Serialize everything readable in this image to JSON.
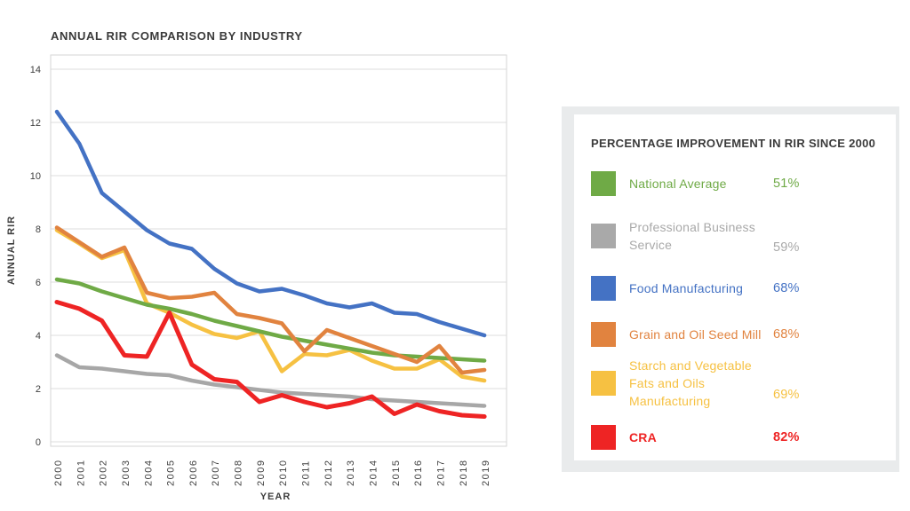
{
  "chart_data": {
    "type": "line",
    "title": "ANNUAL RIR COMPARISON BY INDUSTRY",
    "xlabel": "YEAR",
    "ylabel": "ANNUAL RIR",
    "x": [
      "2000",
      "2001",
      "2002",
      "2003",
      "2004",
      "2005",
      "2006",
      "2007",
      "2008",
      "2009",
      "2010",
      "2011",
      "2012",
      "2013",
      "2014",
      "2015",
      "2016",
      "2017",
      "2018",
      "2019"
    ],
    "ylim": [
      0,
      14
    ],
    "ytick_step": 2,
    "grid": true,
    "legend_position": "right-panel",
    "series": [
      {
        "name": "Professional Business Service",
        "color": "#a7a7a7",
        "width": 4.5,
        "values": [
          3.25,
          2.8,
          2.75,
          2.65,
          2.55,
          2.5,
          2.3,
          2.15,
          2.05,
          1.95,
          1.85,
          1.8,
          1.75,
          1.7,
          1.6,
          1.55,
          1.5,
          1.45,
          1.4,
          1.35
        ]
      },
      {
        "name": "Starch and Vegetable Fats and Oils Manufacturing",
        "color": "#f6c142",
        "width": 4.5,
        "values": [
          7.95,
          7.45,
          6.9,
          7.2,
          5.2,
          4.85,
          4.4,
          4.05,
          3.9,
          4.15,
          2.65,
          3.3,
          3.25,
          3.45,
          3.05,
          2.75,
          2.75,
          3.1,
          2.45,
          2.3
        ]
      },
      {
        "name": "National Average",
        "color": "#6faa46",
        "width": 4.5,
        "values": [
          6.1,
          5.95,
          5.65,
          5.4,
          5.15,
          5.0,
          4.8,
          4.55,
          4.35,
          4.15,
          3.95,
          3.8,
          3.65,
          3.5,
          3.35,
          3.25,
          3.2,
          3.15,
          3.1,
          3.05
        ]
      },
      {
        "name": "Grain and Oil Seed Mill",
        "color": "#e1833f",
        "width": 4.5,
        "values": [
          8.05,
          7.5,
          6.95,
          7.3,
          5.6,
          5.4,
          5.45,
          5.6,
          4.8,
          4.65,
          4.45,
          3.4,
          4.2,
          3.9,
          3.6,
          3.3,
          3.0,
          3.6,
          2.6,
          2.7
        ]
      },
      {
        "name": "Food Manufacturing",
        "color": "#4472c4",
        "width": 4.5,
        "values": [
          12.4,
          11.2,
          9.35,
          8.65,
          7.95,
          7.45,
          7.25,
          6.5,
          5.95,
          5.65,
          5.75,
          5.5,
          5.2,
          5.05,
          5.2,
          4.85,
          4.8,
          4.5,
          4.25,
          4.0
        ]
      },
      {
        "name": "CRA",
        "color": "#ee2424",
        "width": 5,
        "values": [
          5.25,
          5.0,
          4.55,
          3.25,
          3.2,
          4.85,
          2.9,
          2.35,
          2.25,
          1.5,
          1.75,
          1.5,
          1.3,
          1.45,
          1.7,
          1.05,
          1.4,
          1.15,
          1.0,
          0.95
        ]
      }
    ],
    "colors": {
      "grid": "#dcdcdc",
      "border": "#d6d6d6",
      "axis_text": "#3f3f3f"
    }
  },
  "legend_panel": {
    "title": "PERCENTAGE IMPROVEMENT IN RIR SINCE 2000",
    "items": [
      {
        "label": "National Average",
        "pct": "51%",
        "color": "#6faa46",
        "two_line": false,
        "bold": false
      },
      {
        "label": "Professional Business Service",
        "pct": "59%",
        "color": "#a9a9a9",
        "two_line": true,
        "bold": false
      },
      {
        "label": "Food Manufacturing",
        "pct": "68%",
        "color": "#4472c4",
        "two_line": false,
        "bold": false
      },
      {
        "label": "Grain and Oil Seed Mill",
        "pct": "68%",
        "color": "#e1833f",
        "two_line": false,
        "bold": false
      },
      {
        "label": "Starch and Vegetable Fats and Oils Manufacturing",
        "pct": "69%",
        "color": "#f6c142",
        "two_line": true,
        "bold": false
      },
      {
        "label": "CRA",
        "pct": "82%",
        "color": "#ee2424",
        "two_line": false,
        "bold": true
      }
    ]
  }
}
